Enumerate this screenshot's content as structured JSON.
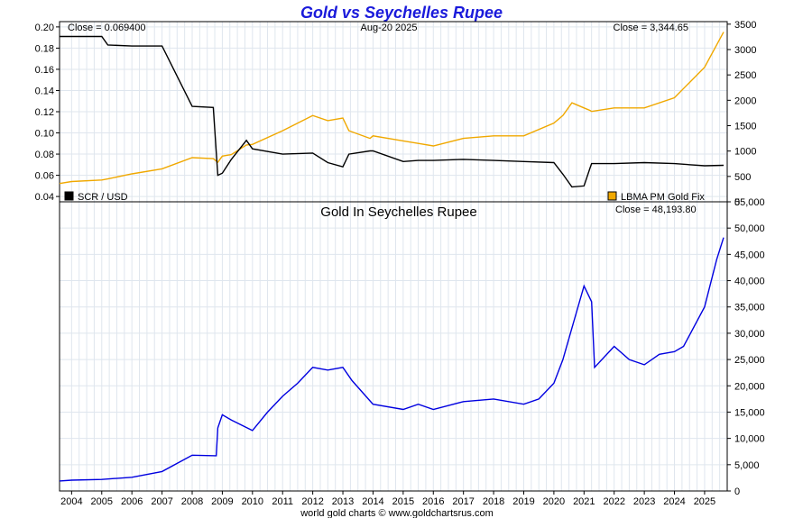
{
  "page_title": "Gold vs Seychelles Rupee",
  "footer": "world gold charts © www.goldchartsrus.com",
  "top_panel": {
    "close_left": "Close = 0.069400",
    "date": "Aug-20  2025",
    "close_right": "Close = 3,344.65",
    "legend_left": "SCR / USD",
    "legend_right": "LBMA PM Gold Fix",
    "left_ticks": [
      "0.20",
      "0.18",
      "0.16",
      "0.14",
      "0.12",
      "0.10",
      "0.08",
      "0.06",
      "0.04"
    ],
    "right_ticks": [
      "3500",
      "3000",
      "2500",
      "2000",
      "1500",
      "1000",
      "500",
      "0"
    ]
  },
  "bottom_panel": {
    "title": "Gold In Seychelles Rupee",
    "close": "Close = 48,193.80",
    "right_ticks": [
      "55,000",
      "50,000",
      "45,000",
      "40,000",
      "35,000",
      "30,000",
      "25,000",
      "20,000",
      "15,000",
      "10,000",
      "5,000",
      "0"
    ]
  },
  "x_ticks": [
    "2004",
    "2005",
    "2006",
    "2007",
    "2008",
    "2009",
    "2010",
    "2011",
    "2012",
    "2013",
    "2014",
    "2015",
    "2016",
    "2017",
    "2018",
    "2019",
    "2020",
    "2021",
    "2022",
    "2023",
    "2024",
    "2025"
  ],
  "colors": {
    "title": "#1a1adb",
    "scr": "#000000",
    "gold": "#f0a800",
    "gold_scr": "#0000e0",
    "grid": "#dfe6ee"
  },
  "chart_data": [
    {
      "type": "line",
      "title": "Gold vs Seychelles Rupee",
      "x": [
        2003.6,
        2004.0,
        2005.0,
        2005.2,
        2006.0,
        2007.0,
        2008.0,
        2008.7,
        2008.85,
        2009.0,
        2009.3,
        2009.8,
        2010.0,
        2011.0,
        2012.0,
        2012.5,
        2013.0,
        2013.2,
        2013.9,
        2014.0,
        2015.0,
        2015.5,
        2016.0,
        2017.0,
        2018.0,
        2019.0,
        2020.0,
        2020.3,
        2020.6,
        2021.0,
        2021.2,
        2021.25,
        2022.0,
        2023.0,
        2024.0,
        2025.0,
        2025.63
      ],
      "series": [
        {
          "name": "SCR / USD",
          "axis": "left",
          "values": [
            0.191,
            0.191,
            0.191,
            0.183,
            0.182,
            0.182,
            0.125,
            0.124,
            0.06,
            0.062,
            0.075,
            0.093,
            0.085,
            0.08,
            0.081,
            0.072,
            0.068,
            0.08,
            0.083,
            0.083,
            0.073,
            0.074,
            0.074,
            0.075,
            0.074,
            0.073,
            0.072,
            0.061,
            0.049,
            0.05,
            0.067,
            0.071,
            0.071,
            0.072,
            0.071,
            0.069,
            0.0694
          ]
        },
        {
          "name": "LBMA PM Gold Fix",
          "axis": "right",
          "values": [
            360,
            400,
            430,
            450,
            550,
            650,
            870,
            850,
            780,
            900,
            930,
            1120,
            1130,
            1400,
            1700,
            1600,
            1650,
            1400,
            1250,
            1300,
            1200,
            1150,
            1100,
            1250,
            1300,
            1300,
            1550,
            1700,
            1950,
            1850,
            1800,
            1780,
            1850,
            1850,
            2050,
            2650,
            3344.65
          ]
        }
      ],
      "ylim_left": [
        0.035,
        0.205
      ],
      "ylim_right": [
        0,
        3550
      ],
      "legend": "bottom"
    },
    {
      "type": "line",
      "title": "Gold In Seychelles Rupee",
      "x": [
        2003.6,
        2004.0,
        2005.0,
        2006.0,
        2007.0,
        2008.0,
        2008.8,
        2008.85,
        2009.0,
        2009.3,
        2010.0,
        2010.5,
        2011.0,
        2011.5,
        2012.0,
        2012.5,
        2013.0,
        2013.3,
        2014.0,
        2015.0,
        2015.5,
        2016.0,
        2017.0,
        2018.0,
        2019.0,
        2019.5,
        2020.0,
        2020.3,
        2020.6,
        2021.0,
        2021.25,
        2021.35,
        2022.0,
        2022.5,
        2023.0,
        2023.5,
        2024.0,
        2024.3,
        2025.0,
        2025.4,
        2025.63
      ],
      "series": [
        {
          "name": "Gold In Seychelles Rupee",
          "axis": "right",
          "values": [
            1900,
            2050,
            2200,
            2600,
            3700,
            6800,
            6700,
            12000,
            14500,
            13500,
            11500,
            15000,
            18000,
            20500,
            23500,
            23000,
            23500,
            21000,
            16500,
            15500,
            16500,
            15500,
            17000,
            17500,
            16500,
            17500,
            20500,
            25000,
            31000,
            39000,
            36000,
            23500,
            27500,
            25000,
            24000,
            26000,
            26500,
            27500,
            35000,
            44000,
            48193.8
          ]
        }
      ],
      "ylim": [
        0,
        55000
      ],
      "xlim": [
        2003.6,
        2025.75
      ]
    }
  ]
}
